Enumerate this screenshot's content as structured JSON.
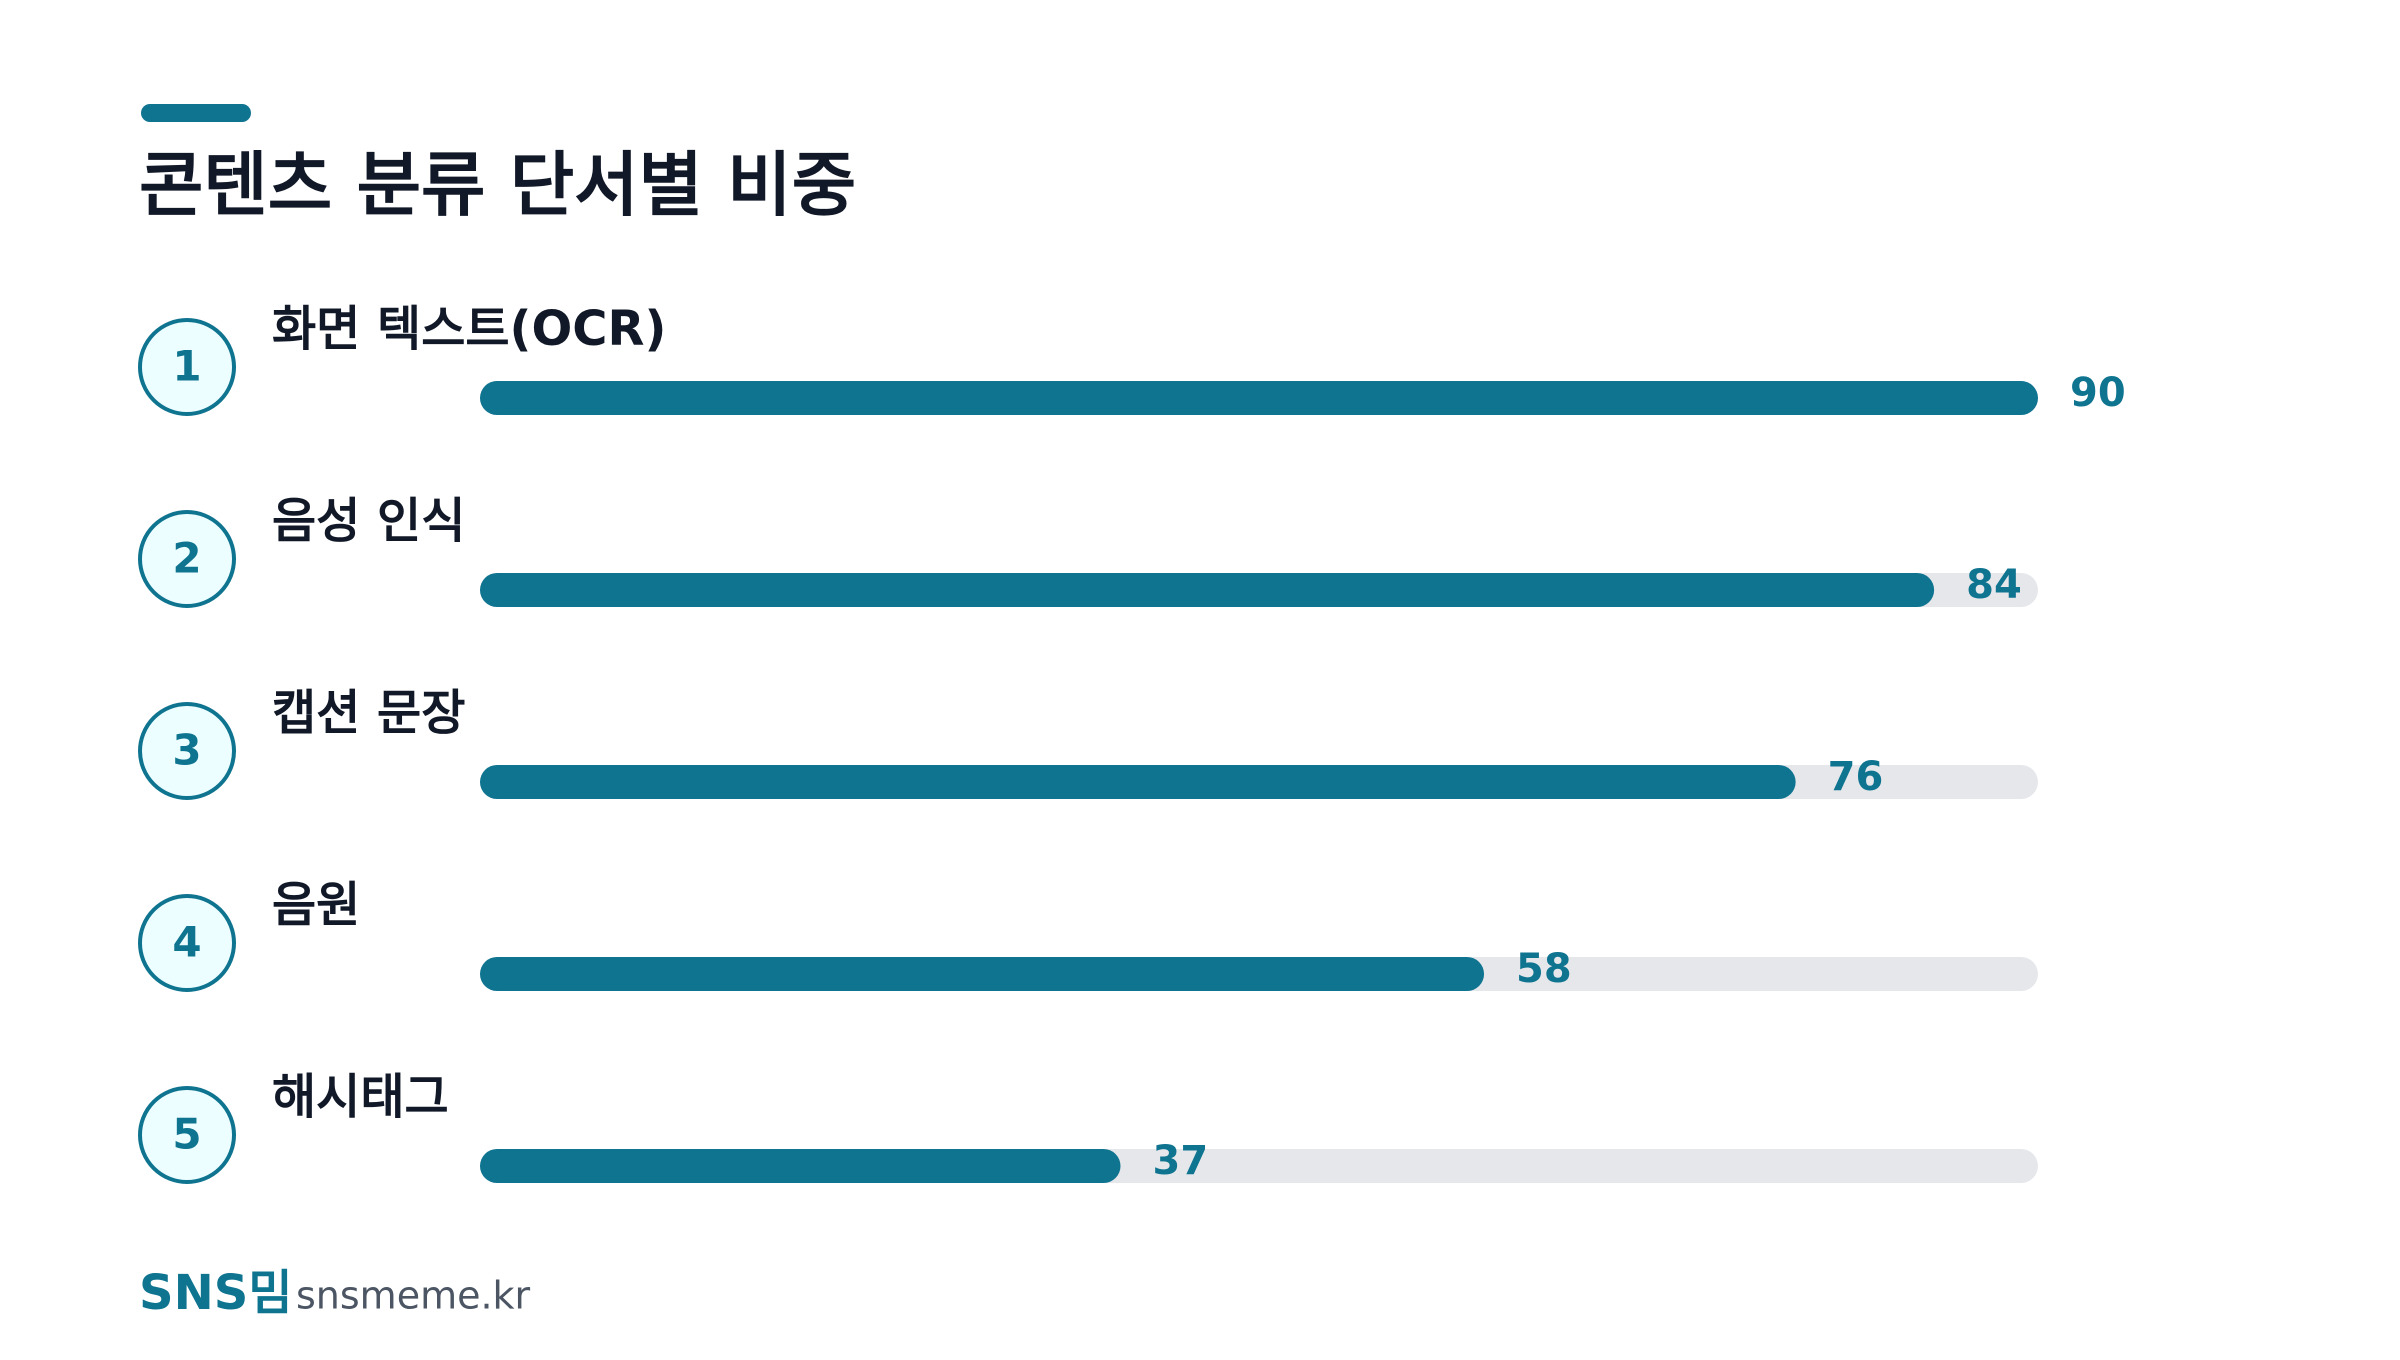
{
  "chart_data": {
    "type": "bar",
    "orientation": "horizontal",
    "title": "콘텐츠 분류 단서별 비중",
    "ranks": [
      1,
      2,
      3,
      4,
      5
    ],
    "categories": [
      "화면 텍스트(OCR)",
      "음성 인식",
      "캡션 문장",
      "음원",
      "해시태그"
    ],
    "values": [
      90,
      84,
      76,
      58,
      37
    ],
    "xlim": [
      0,
      90
    ],
    "color": "#0f7490",
    "track_color": "#e5e7eb",
    "brand": "SNS밈",
    "source": "snsmeme.kr"
  }
}
